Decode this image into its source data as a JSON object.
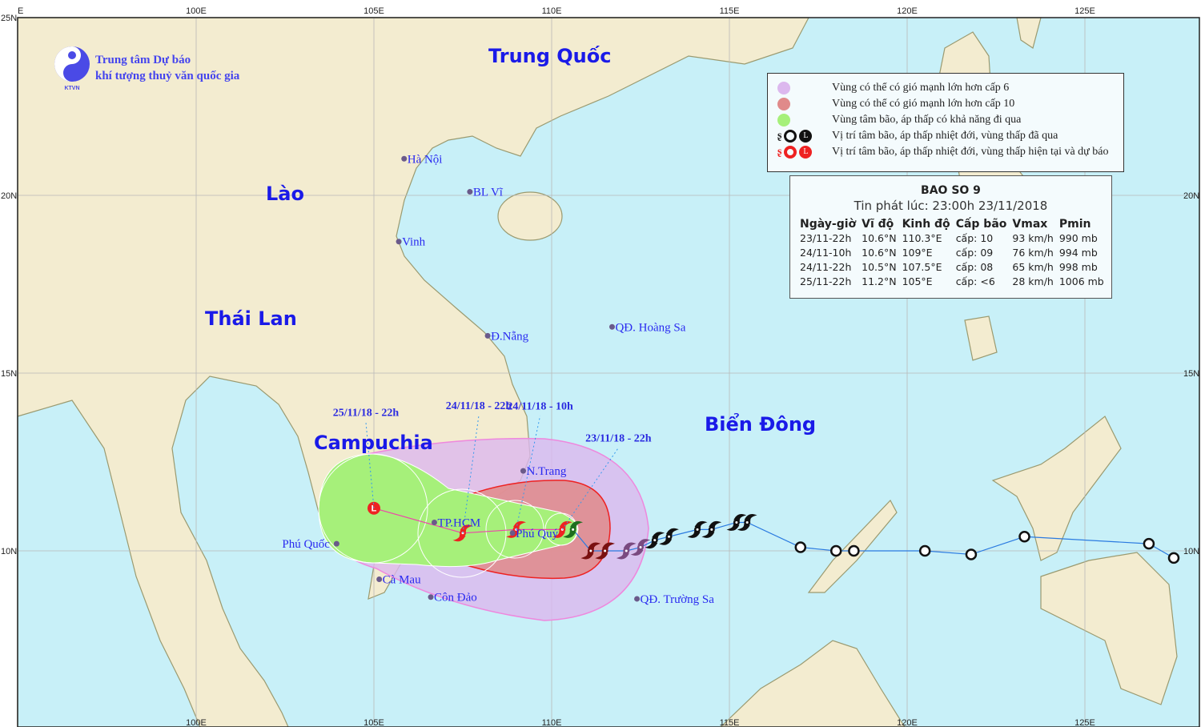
{
  "logo": {
    "org_line1": "Trung tâm Dự báo",
    "org_line2": "khí tượng thuỷ văn quốc gia",
    "emblem_text": "KTVN",
    "brand_color": "#4a4ae6"
  },
  "axes": {
    "lon_ticks": [
      "100E",
      "105E",
      "110E",
      "115E",
      "120E",
      "125E"
    ],
    "lon_values": [
      100,
      105,
      110,
      115,
      120,
      125
    ],
    "lat_ticks": [
      "20N",
      "15N",
      "10N"
    ],
    "lat_values": [
      20,
      15,
      10
    ],
    "edge_lon_label": "E",
    "edge_lat_label": "25N"
  },
  "countries": [
    {
      "name": "Trung Quốc"
    },
    {
      "name": "Lào"
    },
    {
      "name": "Thái Lan"
    },
    {
      "name": "Campuchia"
    },
    {
      "name": "Biển Đông"
    }
  ],
  "places": [
    {
      "name": "Hà Nội",
      "lon": 105.85,
      "lat": 21.03
    },
    {
      "name": "BL Vĩ",
      "lon": 107.7,
      "lat": 20.1
    },
    {
      "name": "Vinh",
      "lon": 105.7,
      "lat": 18.7
    },
    {
      "name": "Đ.Nẵng",
      "lon": 108.2,
      "lat": 16.05
    },
    {
      "name": "QĐ. Hoàng Sa",
      "lon": 111.7,
      "lat": 16.3
    },
    {
      "name": "N.Trang",
      "lon": 109.2,
      "lat": 12.25
    },
    {
      "name": "TP.HCM",
      "lon": 106.7,
      "lat": 10.8
    },
    {
      "name": "Phú Quý",
      "lon": 108.9,
      "lat": 10.5
    },
    {
      "name": "Phú Quốc",
      "lon": 103.95,
      "lat": 10.2
    },
    {
      "name": "Cà Mau",
      "lon": 105.15,
      "lat": 9.2
    },
    {
      "name": "Côn Đảo",
      "lon": 106.6,
      "lat": 8.7
    },
    {
      "name": "QĐ. Trường Sa",
      "lon": 112.4,
      "lat": 8.65
    }
  ],
  "legend": {
    "items": [
      {
        "label": "Vùng có thể có gió mạnh lớn hơn cấp 6",
        "color": "#dcb8ee"
      },
      {
        "label": "Vùng có thể có gió mạnh lớn hơn cấp 10",
        "color": "#e08a8a"
      },
      {
        "label": "Vùng tâm bão, áp thấp có khả năng đi qua",
        "color": "#a6f07a"
      },
      {
        "label": "Vị trí tâm bão, áp thấp nhiệt đới, vùng thấp đã qua",
        "color": "#111111"
      },
      {
        "label": "Vị trí tâm bão, áp thấp nhiệt đới, vùng thấp hiện tại và dự báo",
        "color": "#ee2222"
      }
    ]
  },
  "info": {
    "title": "BAO SO 9",
    "issued": "Tin phát lúc: 23:00h 23/11/2018",
    "headers": [
      "Ngày-giờ",
      "Vĩ độ",
      "Kinh độ",
      "Cấp bão",
      "Vmax",
      "Pmin"
    ],
    "rows": [
      [
        "23/11-22h",
        "10.6°N",
        "110.3°E",
        "cấp: 10",
        "93 km/h",
        "990 mb"
      ],
      [
        "24/11-10h",
        "10.6°N",
        "109°E",
        "cấp: 09",
        "76 km/h",
        "994 mb"
      ],
      [
        "24/11-22h",
        "10.5°N",
        "107.5°E",
        "cấp: 08",
        "65 km/h",
        "998 mb"
      ],
      [
        "25/11-22h",
        "11.2°N",
        "105°E",
        "cấp: <6",
        "28 km/h",
        "1006 mb"
      ]
    ]
  },
  "forecast": [
    {
      "label": "23/11/18 - 22h",
      "lon": 110.3,
      "lat": 10.6,
      "type": "storm"
    },
    {
      "label": "24/11/18 - 10h",
      "lon": 109.0,
      "lat": 10.6,
      "type": "storm"
    },
    {
      "label": "24/11/18 - 22h",
      "lon": 107.5,
      "lat": 10.5,
      "type": "storm"
    },
    {
      "label": "25/11/18 - 22h",
      "lon": 105.0,
      "lat": 11.2,
      "type": "low"
    }
  ],
  "past_track": [
    {
      "lon": 127.5,
      "lat": 9.8,
      "type": "depression"
    },
    {
      "lon": 126.8,
      "lat": 10.2,
      "type": "depression"
    },
    {
      "lon": 123.3,
      "lat": 10.4,
      "type": "depression"
    },
    {
      "lon": 121.8,
      "lat": 9.9,
      "type": "depression"
    },
    {
      "lon": 120.5,
      "lat": 10.0,
      "type": "depression"
    },
    {
      "lon": 118.5,
      "lat": 10.0,
      "type": "depression"
    },
    {
      "lon": 118.0,
      "lat": 10.0,
      "type": "depression"
    },
    {
      "lon": 117.0,
      "lat": 10.1,
      "type": "depression"
    },
    {
      "lon": 115.5,
      "lat": 10.8,
      "type": "storm"
    },
    {
      "lon": 115.2,
      "lat": 10.8,
      "type": "storm"
    },
    {
      "lon": 114.5,
      "lat": 10.6,
      "type": "storm"
    },
    {
      "lon": 114.1,
      "lat": 10.6,
      "type": "storm"
    },
    {
      "lon": 113.3,
      "lat": 10.4,
      "type": "storm"
    },
    {
      "lon": 112.9,
      "lat": 10.3,
      "type": "storm"
    },
    {
      "lon": 112.5,
      "lat": 10.1,
      "type": "storm"
    },
    {
      "lon": 112.1,
      "lat": 10.0,
      "type": "storm"
    },
    {
      "lon": 111.5,
      "lat": 10.0,
      "type": "storm"
    },
    {
      "lon": 111.1,
      "lat": 10.0,
      "type": "storm"
    },
    {
      "lon": 110.6,
      "lat": 10.6,
      "type": "storm"
    }
  ],
  "colors": {
    "sea": "#c8f0f8",
    "land": "#f3ecd0",
    "coast": "#9a9a70",
    "track": "#2a7ae0",
    "forecast_line": "#ee44aa",
    "grid": "#b8b8b8"
  }
}
